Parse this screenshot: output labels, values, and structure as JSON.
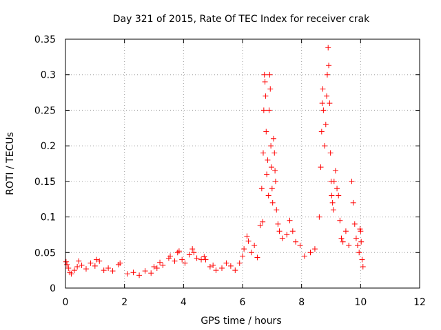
{
  "chart_data": {
    "type": "scatter",
    "title": "Day 321 of 2015, Rate Of TEC Index for receiver crak",
    "xlabel": "GPS time / hours",
    "ylabel": "ROTI / TECUs",
    "xlim": [
      0,
      12
    ],
    "ylim": [
      0,
      0.35
    ],
    "x_ticks": [
      0,
      2,
      4,
      6,
      8,
      10,
      12
    ],
    "x_tick_labels": [
      "0",
      "2",
      "4",
      "6",
      "8",
      "10",
      "12"
    ],
    "y_ticks": [
      0,
      0.05,
      0.1,
      0.15,
      0.2,
      0.25,
      0.3,
      0.35
    ],
    "y_tick_labels": [
      "0",
      "0.05",
      "0.1",
      "0.15",
      "0.2",
      "0.25",
      "0.3",
      "0.35"
    ],
    "grid": true,
    "marker": "+",
    "color": "#ff0000",
    "series": [
      {
        "name": "ROTI",
        "points": [
          [
            0.02,
            0.037
          ],
          [
            0.05,
            0.033
          ],
          [
            0.1,
            0.028
          ],
          [
            0.15,
            0.022
          ],
          [
            0.2,
            0.02
          ],
          [
            0.3,
            0.025
          ],
          [
            0.4,
            0.03
          ],
          [
            0.45,
            0.038
          ],
          [
            0.55,
            0.032
          ],
          [
            0.7,
            0.027
          ],
          [
            0.85,
            0.035
          ],
          [
            1.0,
            0.031
          ],
          [
            1.05,
            0.04
          ],
          [
            1.15,
            0.038
          ],
          [
            1.3,
            0.025
          ],
          [
            1.45,
            0.028
          ],
          [
            1.6,
            0.024
          ],
          [
            1.8,
            0.033
          ],
          [
            1.85,
            0.035
          ],
          [
            2.1,
            0.02
          ],
          [
            2.3,
            0.022
          ],
          [
            2.5,
            0.018
          ],
          [
            2.7,
            0.024
          ],
          [
            2.9,
            0.021
          ],
          [
            3.0,
            0.03
          ],
          [
            3.1,
            0.028
          ],
          [
            3.2,
            0.036
          ],
          [
            3.3,
            0.032
          ],
          [
            3.5,
            0.042
          ],
          [
            3.55,
            0.045
          ],
          [
            3.7,
            0.038
          ],
          [
            3.8,
            0.05
          ],
          [
            3.85,
            0.052
          ],
          [
            3.95,
            0.04
          ],
          [
            4.05,
            0.035
          ],
          [
            4.2,
            0.047
          ],
          [
            4.3,
            0.055
          ],
          [
            4.35,
            0.05
          ],
          [
            4.45,
            0.042
          ],
          [
            4.6,
            0.04
          ],
          [
            4.7,
            0.044
          ],
          [
            4.75,
            0.04
          ],
          [
            4.9,
            0.03
          ],
          [
            5.0,
            0.032
          ],
          [
            5.1,
            0.025
          ],
          [
            5.3,
            0.028
          ],
          [
            5.45,
            0.035
          ],
          [
            5.6,
            0.031
          ],
          [
            5.75,
            0.025
          ],
          [
            5.9,
            0.035
          ],
          [
            6.0,
            0.045
          ],
          [
            6.05,
            0.055
          ],
          [
            6.15,
            0.073
          ],
          [
            6.2,
            0.066
          ],
          [
            6.3,
            0.05
          ],
          [
            6.4,
            0.06
          ],
          [
            6.5,
            0.043
          ],
          [
            6.6,
            0.088
          ],
          [
            6.65,
            0.14
          ],
          [
            6.68,
            0.093
          ],
          [
            6.7,
            0.19
          ],
          [
            6.72,
            0.25
          ],
          [
            6.74,
            0.3
          ],
          [
            6.76,
            0.29
          ],
          [
            6.78,
            0.27
          ],
          [
            6.8,
            0.22
          ],
          [
            6.82,
            0.16
          ],
          [
            6.85,
            0.18
          ],
          [
            6.88,
            0.13
          ],
          [
            6.9,
            0.25
          ],
          [
            6.92,
            0.3
          ],
          [
            6.94,
            0.28
          ],
          [
            6.96,
            0.2
          ],
          [
            6.98,
            0.17
          ],
          [
            7.0,
            0.14
          ],
          [
            7.02,
            0.12
          ],
          [
            7.05,
            0.21
          ],
          [
            7.08,
            0.19
          ],
          [
            7.1,
            0.165
          ],
          [
            7.12,
            0.15
          ],
          [
            7.15,
            0.11
          ],
          [
            7.2,
            0.09
          ],
          [
            7.25,
            0.08
          ],
          [
            7.35,
            0.07
          ],
          [
            7.5,
            0.075
          ],
          [
            7.6,
            0.095
          ],
          [
            7.7,
            0.08
          ],
          [
            7.8,
            0.065
          ],
          [
            7.95,
            0.06
          ],
          [
            8.1,
            0.045
          ],
          [
            8.3,
            0.05
          ],
          [
            8.45,
            0.055
          ],
          [
            8.6,
            0.1
          ],
          [
            8.65,
            0.17
          ],
          [
            8.68,
            0.22
          ],
          [
            8.7,
            0.26
          ],
          [
            8.72,
            0.28
          ],
          [
            8.74,
            0.25
          ],
          [
            8.78,
            0.2
          ],
          [
            8.82,
            0.23
          ],
          [
            8.85,
            0.27
          ],
          [
            8.87,
            0.3
          ],
          [
            8.9,
            0.338
          ],
          [
            8.92,
            0.313
          ],
          [
            8.95,
            0.26
          ],
          [
            8.98,
            0.19
          ],
          [
            9.0,
            0.15
          ],
          [
            9.02,
            0.13
          ],
          [
            9.05,
            0.12
          ],
          [
            9.08,
            0.11
          ],
          [
            9.1,
            0.15
          ],
          [
            9.15,
            0.165
          ],
          [
            9.2,
            0.14
          ],
          [
            9.25,
            0.13
          ],
          [
            9.3,
            0.095
          ],
          [
            9.35,
            0.07
          ],
          [
            9.4,
            0.065
          ],
          [
            9.5,
            0.08
          ],
          [
            9.6,
            0.06
          ],
          [
            9.7,
            0.15
          ],
          [
            9.75,
            0.12
          ],
          [
            9.8,
            0.09
          ],
          [
            9.85,
            0.07
          ],
          [
            9.9,
            0.06
          ],
          [
            9.95,
            0.05
          ],
          [
            9.98,
            0.083
          ],
          [
            10.0,
            0.08
          ],
          [
            10.02,
            0.065
          ],
          [
            10.05,
            0.04
          ],
          [
            10.08,
            0.03
          ]
        ]
      }
    ]
  }
}
